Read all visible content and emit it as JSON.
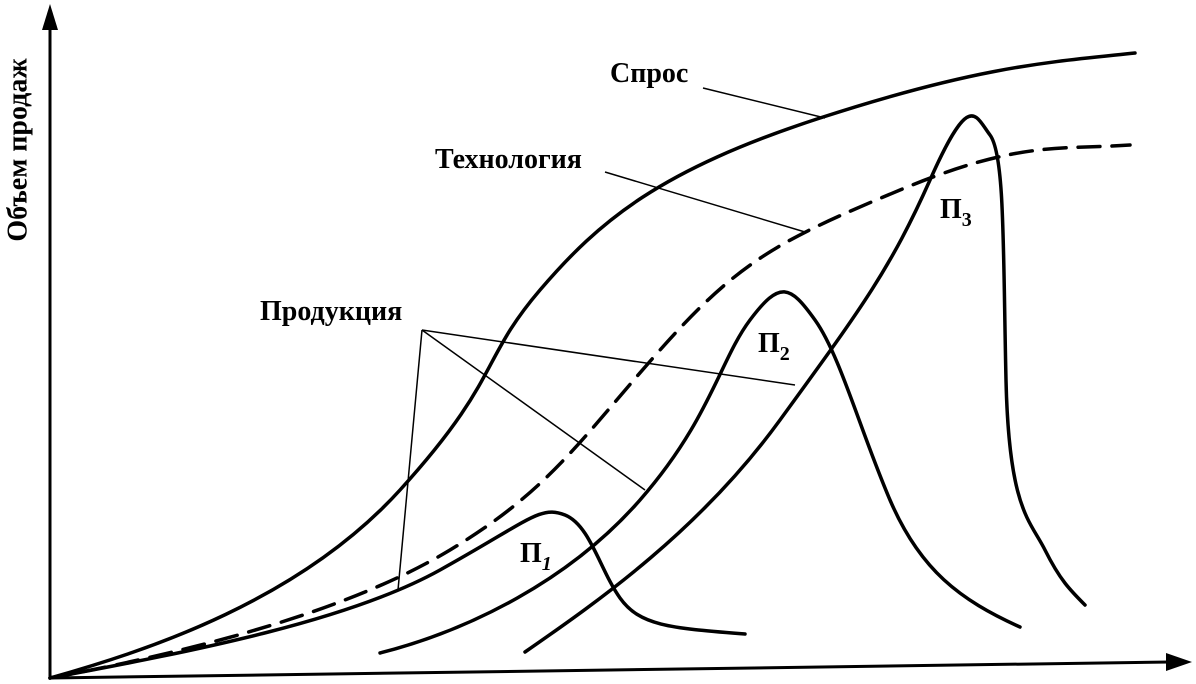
{
  "axis": {
    "y_label": "Объем продаж"
  },
  "labels": {
    "demand": "Спрос",
    "technology": "Технология",
    "products": "Продукция"
  },
  "products": [
    {
      "label": "П",
      "subscript": "1"
    },
    {
      "label": "П",
      "subscript": "2"
    },
    {
      "label": "П",
      "subscript": "3"
    }
  ]
}
